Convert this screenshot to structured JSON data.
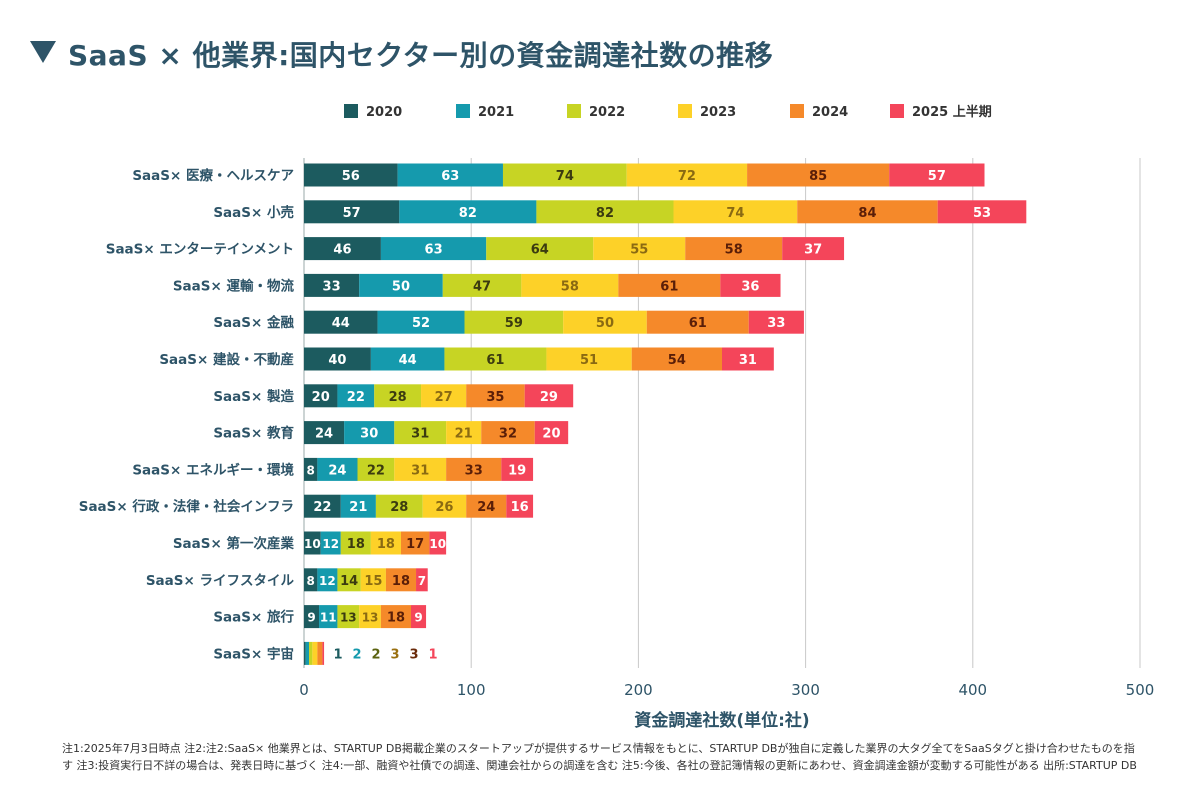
{
  "title": "SaaS × 他業界:国内セクター別の資金調達社数の推移",
  "notes": [
    "注1:2025年7月3日時点 注2:注2:SaaS× 他業界とは、STARTUP DB掲載企業のスタートアップが提供するサービス情報をもとに、STARTUP DBが独自に定義した業界の大タグ全てをSaaSタグと掛け合わせたものを指",
    "す 注3:投資実行日不詳の場合は、発表日時に基づく 注4:一部、融資や社債での調達、関連会社からの調達を含む 注5:今後、各社の登記簿情報の更新にあわせ、資金調達金額が変動する可能性がある 出所:STARTUP DB"
  ],
  "chart_data": {
    "type": "bar",
    "orientation": "horizontal",
    "stacked": true,
    "xlabel": "資金調達社数(単位:社)",
    "xlim": [
      0,
      500
    ],
    "xticks": [
      0,
      100,
      200,
      300,
      400,
      500
    ],
    "grid": true,
    "legend_position": "top",
    "categories": [
      "SaaS× 医療・ヘルスケア",
      "SaaS× 小売",
      "SaaS× エンターテインメント",
      "SaaS× 運輸・物流",
      "SaaS× 金融",
      "SaaS× 建設・不動産",
      "SaaS× 製造",
      "SaaS× 教育",
      "SaaS× エネルギー・環境",
      "SaaS× 行政・法律・社会インフラ",
      "SaaS× 第一次産業",
      "SaaS× ライフスタイル",
      "SaaS× 旅行",
      "SaaS× 宇宙"
    ],
    "series": [
      {
        "name": "2020",
        "color": "#1c5b5f",
        "label_color": "#ffffff",
        "label_outside_color": "#1c5b5f",
        "values": [
          56,
          57,
          46,
          33,
          44,
          40,
          20,
          24,
          8,
          22,
          10,
          8,
          9,
          1
        ]
      },
      {
        "name": "2021",
        "color": "#159aad",
        "label_color": "#ffffff",
        "label_outside_color": "#159aad",
        "values": [
          63,
          82,
          63,
          50,
          52,
          44,
          22,
          30,
          24,
          21,
          12,
          12,
          11,
          2
        ]
      },
      {
        "name": "2022",
        "color": "#c7d424",
        "label_color": "#3b3b10",
        "label_outside_color": "#5b6310",
        "values": [
          74,
          82,
          64,
          47,
          59,
          61,
          28,
          31,
          22,
          28,
          18,
          14,
          13,
          2
        ]
      },
      {
        "name": "2023",
        "color": "#fdd128",
        "label_color": "#8a6a12",
        "label_outside_color": "#9a7010",
        "values": [
          72,
          74,
          55,
          58,
          50,
          51,
          27,
          21,
          31,
          26,
          18,
          15,
          13,
          3
        ]
      },
      {
        "name": "2024",
        "color": "#f5892a",
        "label_color": "#5a1e08",
        "label_outside_color": "#6a2a0a",
        "values": [
          85,
          84,
          58,
          61,
          61,
          54,
          35,
          32,
          33,
          24,
          17,
          18,
          18,
          3
        ]
      },
      {
        "name": "2025 上半期",
        "color": "#f4455a",
        "label_color": "#ffffff",
        "label_outside_color": "#f4455a",
        "values": [
          57,
          53,
          37,
          36,
          33,
          31,
          29,
          20,
          19,
          16,
          10,
          7,
          9,
          1
        ]
      }
    ]
  }
}
